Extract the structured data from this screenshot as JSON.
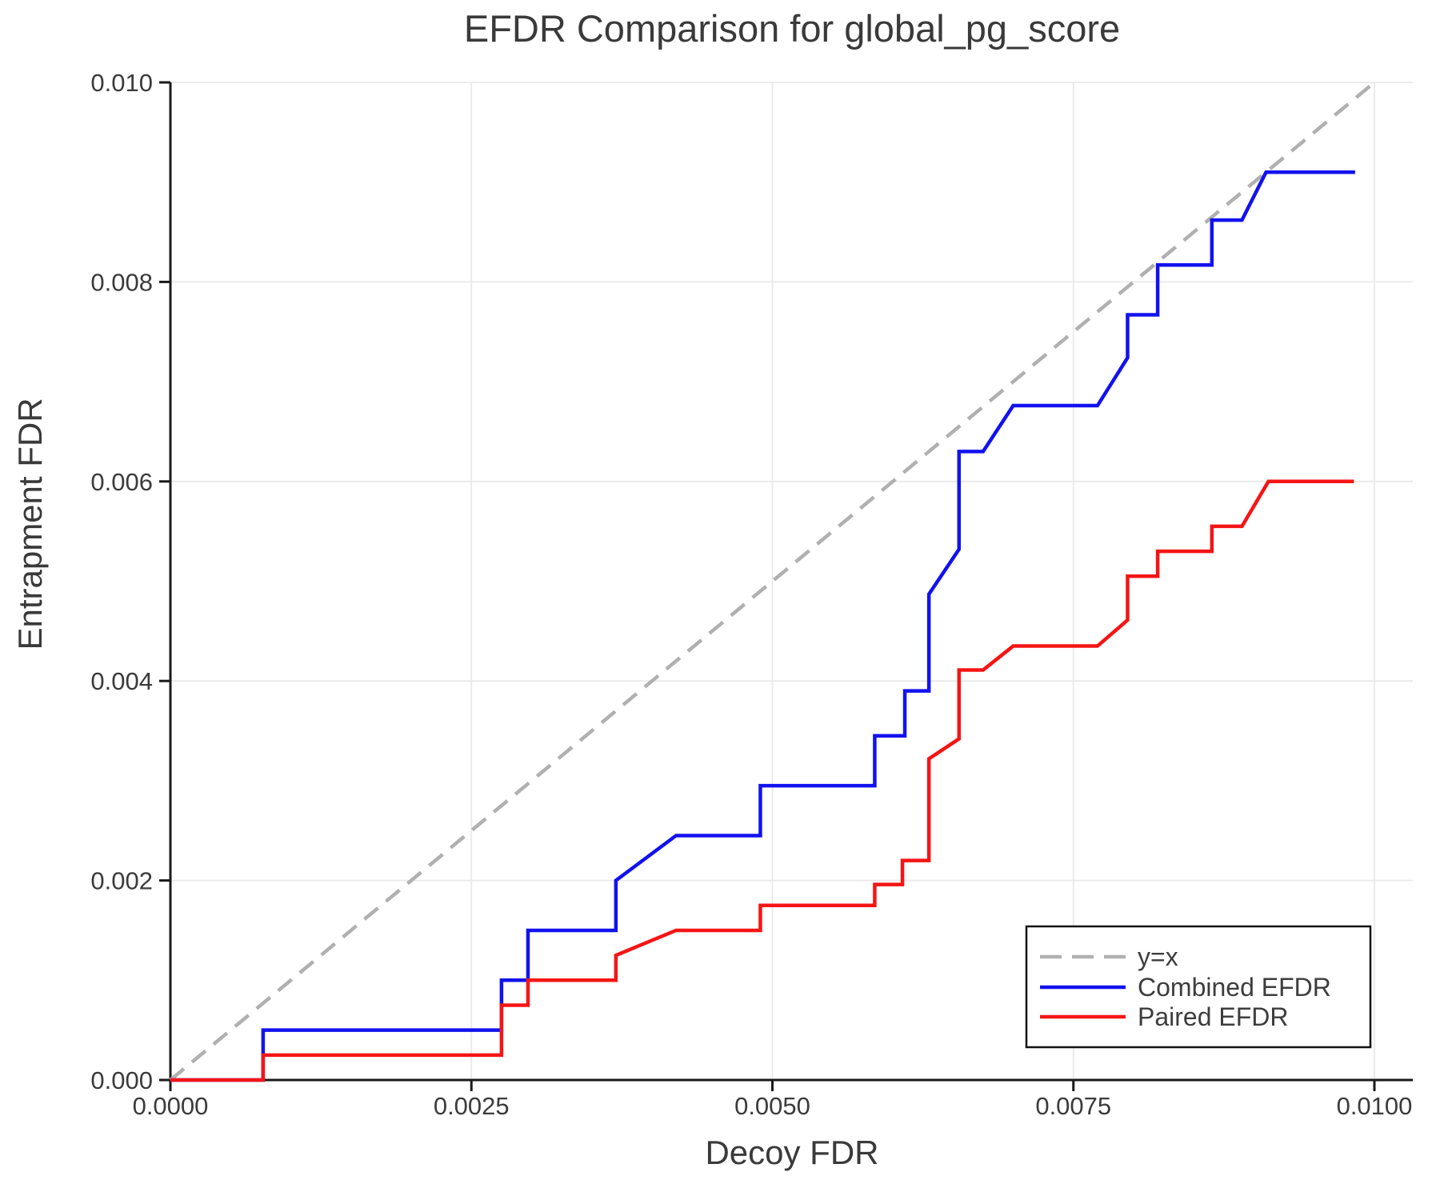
{
  "page": {
    "background": "#ffffff"
  },
  "chart_data": {
    "type": "line",
    "subtype": "step",
    "title": "EFDR Comparison for global_pg_score",
    "xlabel": "Decoy FDR",
    "ylabel": "Entrapment FDR",
    "xlim": [
      0,
      0.01032
    ],
    "ylim": [
      0,
      0.01
    ],
    "grid": true,
    "legend_position": "lower right",
    "x_ticks": {
      "values": [
        0.0,
        0.0025,
        0.005,
        0.0075,
        0.01
      ],
      "labels": [
        "0.0000",
        "0.0025",
        "0.0050",
        "0.0075",
        "0.0100"
      ]
    },
    "y_ticks": {
      "values": [
        0.0,
        0.002,
        0.004,
        0.006,
        0.008,
        0.01
      ],
      "labels": [
        "0.000",
        "0.002",
        "0.004",
        "0.006",
        "0.008",
        "0.010"
      ]
    },
    "legend": {
      "items": [
        {
          "label": "y=x",
          "color": "#b0b0b0",
          "dashed": true
        },
        {
          "label": "Combined EFDR",
          "color": "#1212ef",
          "dashed": false
        },
        {
          "label": "Paired EFDR",
          "color": "#f51515",
          "dashed": false
        }
      ]
    },
    "series": [
      {
        "name": "y=x",
        "color": "#b0b0b0",
        "dashed": true,
        "width": 3,
        "points": [
          [
            0,
            0
          ],
          [
            0.01,
            0.01
          ]
        ]
      },
      {
        "name": "Combined EFDR",
        "color": "#1212ef",
        "dashed": false,
        "width": 4.5,
        "points": [
          [
            0.0,
            0.0
          ],
          [
            0.00077,
            0.0
          ],
          [
            0.00077,
            0.0005
          ],
          [
            0.00275,
            0.0005
          ],
          [
            0.00275,
            0.001
          ],
          [
            0.00297,
            0.001
          ],
          [
            0.00297,
            0.0015
          ],
          [
            0.0037,
            0.0015
          ],
          [
            0.0037,
            0.002
          ],
          [
            0.0042,
            0.00245
          ],
          [
            0.0049,
            0.00245
          ],
          [
            0.0049,
            0.00295
          ],
          [
            0.00585,
            0.00295
          ],
          [
            0.00585,
            0.00345
          ],
          [
            0.0061,
            0.00345
          ],
          [
            0.0061,
            0.0039
          ],
          [
            0.0063,
            0.0039
          ],
          [
            0.0063,
            0.00487
          ],
          [
            0.00655,
            0.00532
          ],
          [
            0.00655,
            0.0063
          ],
          [
            0.00675,
            0.0063
          ],
          [
            0.007,
            0.00676
          ],
          [
            0.0077,
            0.00676
          ],
          [
            0.00795,
            0.00724
          ],
          [
            0.00795,
            0.00767
          ],
          [
            0.0082,
            0.00767
          ],
          [
            0.0082,
            0.00817
          ],
          [
            0.00865,
            0.00817
          ],
          [
            0.00865,
            0.00862
          ],
          [
            0.0089,
            0.00862
          ],
          [
            0.0091,
            0.0091
          ],
          [
            0.00984,
            0.0091
          ]
        ]
      },
      {
        "name": "Paired EFDR",
        "color": "#f51515",
        "dashed": false,
        "width": 4.5,
        "points": [
          [
            0.0,
            0.0
          ],
          [
            0.00077,
            0.0
          ],
          [
            0.00077,
            0.00025
          ],
          [
            0.00275,
            0.00025
          ],
          [
            0.00275,
            0.00075
          ],
          [
            0.00297,
            0.00075
          ],
          [
            0.00297,
            0.001
          ],
          [
            0.0037,
            0.001
          ],
          [
            0.0037,
            0.00125
          ],
          [
            0.0042,
            0.0015
          ],
          [
            0.0049,
            0.0015
          ],
          [
            0.0049,
            0.00175
          ],
          [
            0.00585,
            0.00175
          ],
          [
            0.00585,
            0.00196
          ],
          [
            0.00608,
            0.00196
          ],
          [
            0.00608,
            0.0022
          ],
          [
            0.0063,
            0.0022
          ],
          [
            0.0063,
            0.00322
          ],
          [
            0.00655,
            0.00342
          ],
          [
            0.00655,
            0.00411
          ],
          [
            0.00675,
            0.00411
          ],
          [
            0.007,
            0.00435
          ],
          [
            0.0077,
            0.00435
          ],
          [
            0.00795,
            0.00461
          ],
          [
            0.00795,
            0.00505
          ],
          [
            0.0082,
            0.00505
          ],
          [
            0.0082,
            0.0053
          ],
          [
            0.00865,
            0.0053
          ],
          [
            0.00865,
            0.00555
          ],
          [
            0.0089,
            0.00555
          ],
          [
            0.00912,
            0.006
          ],
          [
            0.00983,
            0.006
          ]
        ]
      }
    ]
  }
}
